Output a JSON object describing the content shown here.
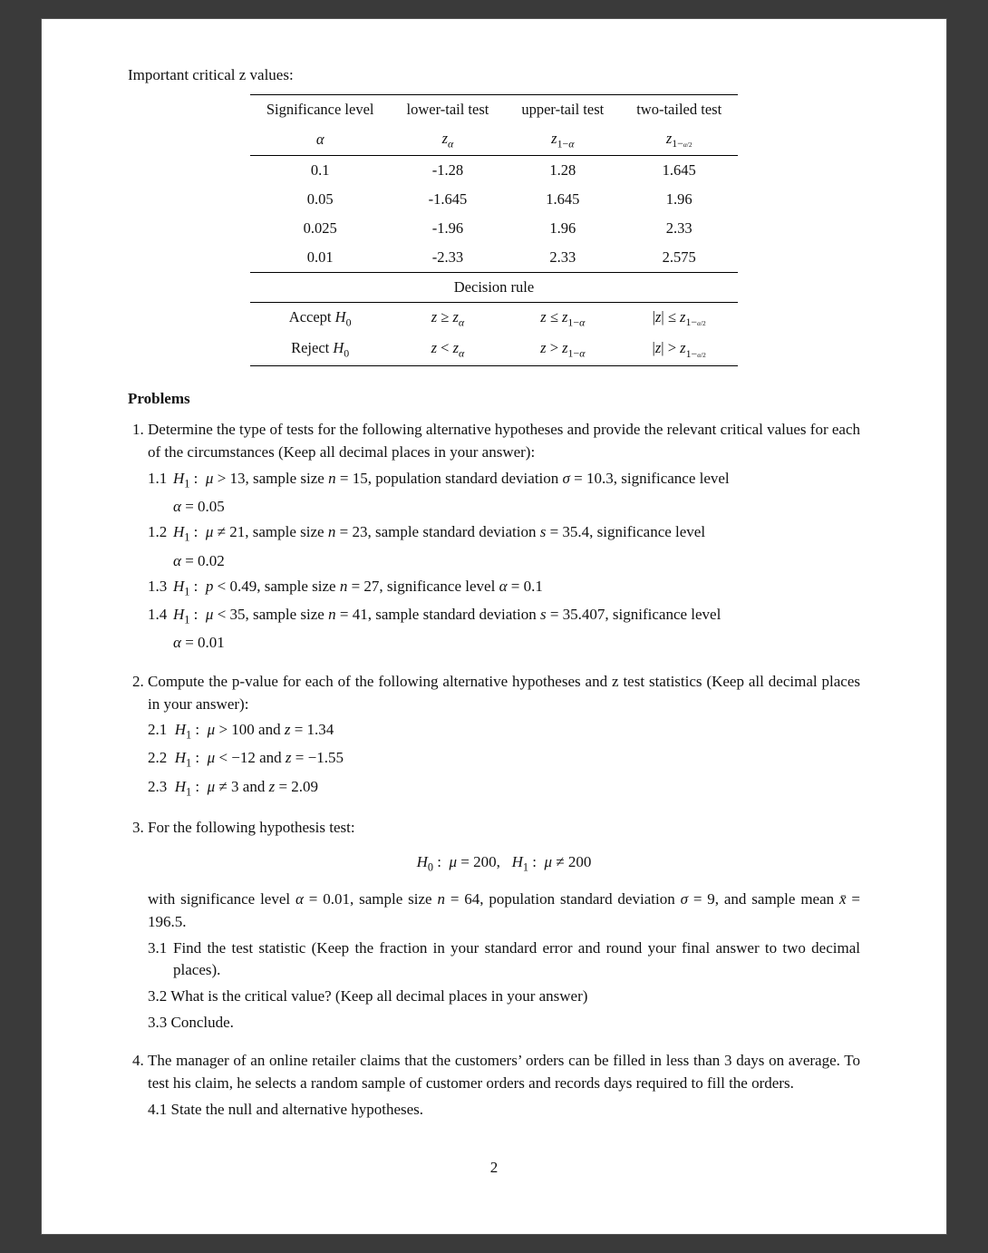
{
  "intro": "Important critical z values:",
  "table": {
    "headers": [
      "Significance level",
      "lower-tail test",
      "upper-tail test",
      "two-tailed test"
    ],
    "sym_row": [
      "α",
      "z_α",
      "z_{1−α}",
      "z_{1−α/2}"
    ],
    "rows": [
      [
        "0.1",
        "-1.28",
        "1.28",
        "1.645"
      ],
      [
        "0.05",
        "-1.645",
        "1.645",
        "1.96"
      ],
      [
        "0.025",
        "-1.96",
        "1.96",
        "2.33"
      ],
      [
        "0.01",
        "-2.33",
        "2.33",
        "2.575"
      ]
    ],
    "decision_label": "Decision rule",
    "decision_rows": [
      [
        "Accept H₀",
        "z ≥ z_α",
        "z ≤ z_{1−α}",
        "|z| ≤ z_{1−α/2}"
      ],
      [
        "Reject H₀",
        "z < z_α",
        "z > z_{1−α}",
        "|z| > z_{1−α/2}"
      ]
    ]
  },
  "problems_heading": "Problems",
  "p1_intro": "Determine the type of tests for the following alternative hypotheses and provide the relevant critical values for each of the circumstances (Keep all decimal places in your answer):",
  "p1_1a": "1.1",
  "p1_1b": "H₁ :  μ > 13, sample size n = 15, population standard deviation σ = 10.3, significance level",
  "p1_1c": "α = 0.05",
  "p1_2a": "1.2",
  "p1_2b": "H₁ :  μ ≠ 21, sample size n = 23, sample standard deviation s = 35.4, significance level",
  "p1_2c": "α = 0.02",
  "p1_3a": "1.3",
  "p1_3b": "H₁ :  p < 0.49, sample size n = 27, significance level α = 0.1",
  "p1_4a": "1.4",
  "p1_4b": "H₁ :  μ < 35, sample size n = 41, sample standard deviation s = 35.407, significance level",
  "p1_4c": "α = 0.01",
  "p2_intro": "Compute the p-value for each of the following alternative hypotheses and z test statistics (Keep all decimal places in your answer):",
  "p2_1": "2.1  H₁ :  μ > 100 and z = 1.34",
  "p2_2": "2.2  H₁ :  μ < −12 and z = −1.55",
  "p2_3": "2.3  H₁ :  μ ≠ 3 and z = 2.09",
  "p3_intro": "For the following hypothesis test:",
  "p3_eq": "H₀ :  μ = 200,   H₁ :  μ ≠ 200",
  "p3_body": "with significance level α = 0.01, sample size n = 64, population standard deviation σ = 9, and sample mean x̄ = 196.5.",
  "p3_1a": "3.1",
  "p3_1b": "Find the test statistic (Keep the fraction in your standard error and round your final answer to two decimal places).",
  "p3_2": "3.2  What is the critical value? (Keep all decimal places in your answer)",
  "p3_3": "3.3  Conclude.",
  "p4_intro": "The manager of an online retailer claims that the customers’ orders can be filled in less than 3 days on average. To test his claim, he selects a random sample of customer orders and records days required to fill the orders.",
  "p4_1": "4.1  State the null and alternative hypotheses.",
  "pagenum": "2"
}
